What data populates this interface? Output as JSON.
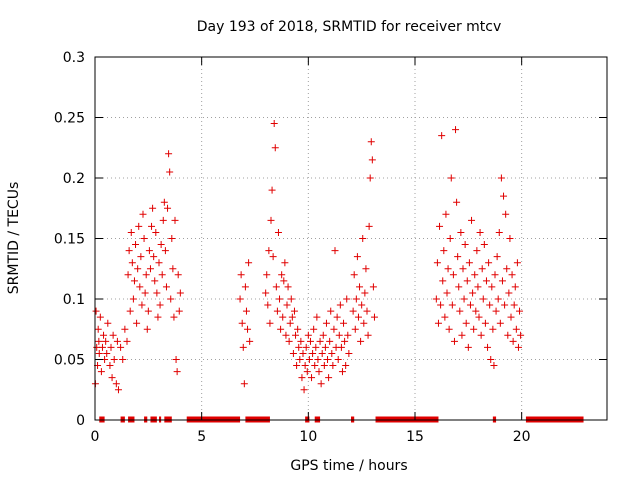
{
  "chart_data": {
    "type": "scatter",
    "title": "Day 193 of 2018, SRMTID for receiver mtcv",
    "xlabel": "GPS time / hours",
    "ylabel": "SRMTID / TECUs",
    "xlim": [
      0,
      24
    ],
    "ylim": [
      0,
      0.3
    ],
    "xticks": [
      0,
      5,
      10,
      15,
      20
    ],
    "yticks": [
      0,
      0.05,
      0.1,
      0.15,
      0.2,
      0.25,
      0.3
    ],
    "xtick_labels": [
      "0",
      "5",
      "10",
      "15",
      "20"
    ],
    "ytick_labels": [
      "0",
      "0.05",
      "0.1",
      "0.15",
      "0.2",
      "0.25",
      "0.3"
    ],
    "grid": true,
    "marker": "+",
    "color": "#e00000",
    "series": [
      {
        "name": "SRMTID",
        "points": [
          [
            0.02,
            0.03
          ],
          [
            0.05,
            0.09
          ],
          [
            0.08,
            0.06
          ],
          [
            0.12,
            0.045
          ],
          [
            0.15,
            0.075
          ],
          [
            0.18,
            0.065
          ],
          [
            0.2,
            0.055
          ],
          [
            0.25,
            0.085
          ],
          [
            0.3,
            0.04
          ],
          [
            0.35,
            0.06
          ],
          [
            0.4,
            0.07
          ],
          [
            0.45,
            0.05
          ],
          [
            0.5,
            0.065
          ],
          [
            0.55,
            0.055
          ],
          [
            0.6,
            0.08
          ],
          [
            0.7,
            0.045
          ],
          [
            0.75,
            0.06
          ],
          [
            0.8,
            0.035
          ],
          [
            0.85,
            0.07
          ],
          [
            0.9,
            0.05
          ],
          [
            1.0,
            0.03
          ],
          [
            1.05,
            0.065
          ],
          [
            1.1,
            0.025
          ],
          [
            1.2,
            0.06
          ],
          [
            1.3,
            0.05
          ],
          [
            1.4,
            0.075
          ],
          [
            1.5,
            0.065
          ],
          [
            1.55,
            0.12
          ],
          [
            1.6,
            0.14
          ],
          [
            1.65,
            0.09
          ],
          [
            1.7,
            0.155
          ],
          [
            1.75,
            0.13
          ],
          [
            1.8,
            0.1
          ],
          [
            1.85,
            0.115
          ],
          [
            1.9,
            0.145
          ],
          [
            1.95,
            0.08
          ],
          [
            2.0,
            0.125
          ],
          [
            2.05,
            0.16
          ],
          [
            2.1,
            0.11
          ],
          [
            2.15,
            0.135
          ],
          [
            2.2,
            0.095
          ],
          [
            2.25,
            0.17
          ],
          [
            2.3,
            0.15
          ],
          [
            2.35,
            0.105
          ],
          [
            2.4,
            0.12
          ],
          [
            2.45,
            0.075
          ],
          [
            2.5,
            0.09
          ],
          [
            2.55,
            0.14
          ],
          [
            2.6,
            0.125
          ],
          [
            2.65,
            0.16
          ],
          [
            2.7,
            0.175
          ],
          [
            2.75,
            0.135
          ],
          [
            2.8,
            0.115
          ],
          [
            2.85,
            0.155
          ],
          [
            2.9,
            0.105
          ],
          [
            2.95,
            0.085
          ],
          [
            3.0,
            0.13
          ],
          [
            3.05,
            0.095
          ],
          [
            3.1,
            0.145
          ],
          [
            3.15,
            0.12
          ],
          [
            3.2,
            0.165
          ],
          [
            3.25,
            0.18
          ],
          [
            3.3,
            0.14
          ],
          [
            3.35,
            0.11
          ],
          [
            3.4,
            0.175
          ],
          [
            3.45,
            0.22
          ],
          [
            3.5,
            0.205
          ],
          [
            3.55,
            0.1
          ],
          [
            3.6,
            0.15
          ],
          [
            3.65,
            0.125
          ],
          [
            3.7,
            0.085
          ],
          [
            3.75,
            0.165
          ],
          [
            3.8,
            0.05
          ],
          [
            3.85,
            0.04
          ],
          [
            3.9,
            0.12
          ],
          [
            3.95,
            0.09
          ],
          [
            4.0,
            0.105
          ],
          [
            6.8,
            0.1
          ],
          [
            6.85,
            0.12
          ],
          [
            6.9,
            0.08
          ],
          [
            6.95,
            0.06
          ],
          [
            7.0,
            0.03
          ],
          [
            7.05,
            0.11
          ],
          [
            7.1,
            0.09
          ],
          [
            7.15,
            0.075
          ],
          [
            7.2,
            0.13
          ],
          [
            7.25,
            0.065
          ],
          [
            8.0,
            0.105
          ],
          [
            8.05,
            0.12
          ],
          [
            8.1,
            0.095
          ],
          [
            8.15,
            0.14
          ],
          [
            8.2,
            0.08
          ],
          [
            8.25,
            0.165
          ],
          [
            8.3,
            0.19
          ],
          [
            8.35,
            0.135
          ],
          [
            8.4,
            0.245
          ],
          [
            8.45,
            0.225
          ],
          [
            8.5,
            0.11
          ],
          [
            8.55,
            0.09
          ],
          [
            8.6,
            0.155
          ],
          [
            8.65,
            0.1
          ],
          [
            8.7,
            0.075
          ],
          [
            8.75,
            0.12
          ],
          [
            8.8,
            0.085
          ],
          [
            8.85,
            0.115
          ],
          [
            8.9,
            0.13
          ],
          [
            8.95,
            0.07
          ],
          [
            9.0,
            0.095
          ],
          [
            9.05,
            0.11
          ],
          [
            9.1,
            0.065
          ],
          [
            9.15,
            0.08
          ],
          [
            9.2,
            0.1
          ],
          [
            9.25,
            0.085
          ],
          [
            9.3,
            0.055
          ],
          [
            9.35,
            0.09
          ],
          [
            9.4,
            0.07
          ],
          [
            9.45,
            0.045
          ],
          [
            9.5,
            0.075
          ],
          [
            9.55,
            0.06
          ],
          [
            9.6,
            0.05
          ],
          [
            9.65,
            0.065
          ],
          [
            9.7,
            0.035
          ],
          [
            9.75,
            0.055
          ],
          [
            9.8,
            0.025
          ],
          [
            9.85,
            0.045
          ],
          [
            9.9,
            0.06
          ],
          [
            9.95,
            0.04
          ],
          [
            10.0,
            0.07
          ],
          [
            10.05,
            0.05
          ],
          [
            10.1,
            0.065
          ],
          [
            10.15,
            0.035
          ],
          [
            10.2,
            0.055
          ],
          [
            10.25,
            0.075
          ],
          [
            10.3,
            0.045
          ],
          [
            10.35,
            0.06
          ],
          [
            10.4,
            0.085
          ],
          [
            10.45,
            0.05
          ],
          [
            10.5,
            0.04
          ],
          [
            10.55,
            0.065
          ],
          [
            10.6,
            0.03
          ],
          [
            10.65,
            0.055
          ],
          [
            10.7,
            0.07
          ],
          [
            10.75,
            0.045
          ],
          [
            10.8,
            0.06
          ],
          [
            10.85,
            0.08
          ],
          [
            10.9,
            0.05
          ],
          [
            10.95,
            0.035
          ],
          [
            11.0,
            0.065
          ],
          [
            11.05,
            0.09
          ],
          [
            11.1,
            0.055
          ],
          [
            11.15,
            0.045
          ],
          [
            11.2,
            0.075
          ],
          [
            11.25,
            0.14
          ],
          [
            11.3,
            0.06
          ],
          [
            11.35,
            0.085
          ],
          [
            11.4,
            0.05
          ],
          [
            11.45,
            0.07
          ],
          [
            11.5,
            0.095
          ],
          [
            11.55,
            0.06
          ],
          [
            11.6,
            0.04
          ],
          [
            11.65,
            0.08
          ],
          [
            11.7,
            0.065
          ],
          [
            11.75,
            0.045
          ],
          [
            11.8,
            0.1
          ],
          [
            11.85,
            0.07
          ],
          [
            11.9,
            0.055
          ],
          [
            12.1,
            0.09
          ],
          [
            12.15,
            0.12
          ],
          [
            12.2,
            0.075
          ],
          [
            12.25,
            0.1
          ],
          [
            12.3,
            0.135
          ],
          [
            12.35,
            0.085
          ],
          [
            12.4,
            0.11
          ],
          [
            12.45,
            0.065
          ],
          [
            12.5,
            0.095
          ],
          [
            12.55,
            0.15
          ],
          [
            12.6,
            0.08
          ],
          [
            12.65,
            0.105
          ],
          [
            12.7,
            0.125
          ],
          [
            12.75,
            0.09
          ],
          [
            12.8,
            0.07
          ],
          [
            12.85,
            0.16
          ],
          [
            12.9,
            0.2
          ],
          [
            12.95,
            0.23
          ],
          [
            13.0,
            0.215
          ],
          [
            13.05,
            0.11
          ],
          [
            13.1,
            0.085
          ],
          [
            16.0,
            0.1
          ],
          [
            16.05,
            0.13
          ],
          [
            16.1,
            0.08
          ],
          [
            16.15,
            0.16
          ],
          [
            16.2,
            0.095
          ],
          [
            16.25,
            0.235
          ],
          [
            16.3,
            0.115
          ],
          [
            16.35,
            0.14
          ],
          [
            16.4,
            0.085
          ],
          [
            16.45,
            0.17
          ],
          [
            16.5,
            0.105
          ],
          [
            16.55,
            0.125
          ],
          [
            16.6,
            0.075
          ],
          [
            16.65,
            0.15
          ],
          [
            16.7,
            0.2
          ],
          [
            16.75,
            0.095
          ],
          [
            16.8,
            0.12
          ],
          [
            16.85,
            0.065
          ],
          [
            16.9,
            0.24
          ],
          [
            16.95,
            0.18
          ],
          [
            17.0,
            0.135
          ],
          [
            17.05,
            0.11
          ],
          [
            17.1,
            0.09
          ],
          [
            17.15,
            0.155
          ],
          [
            17.2,
            0.07
          ],
          [
            17.25,
            0.125
          ],
          [
            17.3,
            0.1
          ],
          [
            17.35,
            0.145
          ],
          [
            17.4,
            0.08
          ],
          [
            17.45,
            0.115
          ],
          [
            17.5,
            0.06
          ],
          [
            17.55,
            0.13
          ],
          [
            17.6,
            0.095
          ],
          [
            17.65,
            0.165
          ],
          [
            17.7,
            0.105
          ],
          [
            17.75,
            0.075
          ],
          [
            17.8,
            0.12
          ],
          [
            17.85,
            0.09
          ],
          [
            17.9,
            0.14
          ],
          [
            17.95,
            0.11
          ],
          [
            18.0,
            0.085
          ],
          [
            18.05,
            0.155
          ],
          [
            18.1,
            0.07
          ],
          [
            18.15,
            0.125
          ],
          [
            18.2,
            0.1
          ],
          [
            18.25,
            0.145
          ],
          [
            18.3,
            0.08
          ],
          [
            18.35,
            0.115
          ],
          [
            18.4,
            0.06
          ],
          [
            18.45,
            0.13
          ],
          [
            18.5,
            0.095
          ],
          [
            18.55,
            0.05
          ],
          [
            18.6,
            0.11
          ],
          [
            18.65,
            0.075
          ],
          [
            18.7,
            0.045
          ],
          [
            18.75,
            0.12
          ],
          [
            18.8,
            0.09
          ],
          [
            18.85,
            0.135
          ],
          [
            18.9,
            0.1
          ],
          [
            18.95,
            0.155
          ],
          [
            19.0,
            0.08
          ],
          [
            19.05,
            0.2
          ],
          [
            19.1,
            0.115
          ],
          [
            19.15,
            0.185
          ],
          [
            19.2,
            0.095
          ],
          [
            19.25,
            0.17
          ],
          [
            19.3,
            0.125
          ],
          [
            19.35,
            0.07
          ],
          [
            19.4,
            0.105
          ],
          [
            19.45,
            0.15
          ],
          [
            19.5,
            0.085
          ],
          [
            19.55,
            0.12
          ],
          [
            19.6,
            0.065
          ],
          [
            19.65,
            0.095
          ],
          [
            19.7,
            0.11
          ],
          [
            19.75,
            0.075
          ],
          [
            19.8,
            0.13
          ],
          [
            19.85,
            0.06
          ],
          [
            19.9,
            0.09
          ],
          [
            19.95,
            0.07
          ]
        ]
      },
      {
        "name": "zero-level",
        "segments": [
          [
            0.2,
            0.45
          ],
          [
            1.2,
            1.4
          ],
          [
            1.55,
            1.85
          ],
          [
            2.3,
            2.45
          ],
          [
            2.6,
            2.9
          ],
          [
            3.0,
            3.1
          ],
          [
            3.25,
            3.6
          ],
          [
            4.3,
            6.8
          ],
          [
            7.05,
            8.2
          ],
          [
            9.85,
            10.05
          ],
          [
            10.3,
            10.55
          ],
          [
            12.0,
            12.15
          ],
          [
            13.15,
            16.1
          ],
          [
            18.65,
            18.8
          ],
          [
            20.2,
            22.9
          ]
        ]
      }
    ]
  }
}
